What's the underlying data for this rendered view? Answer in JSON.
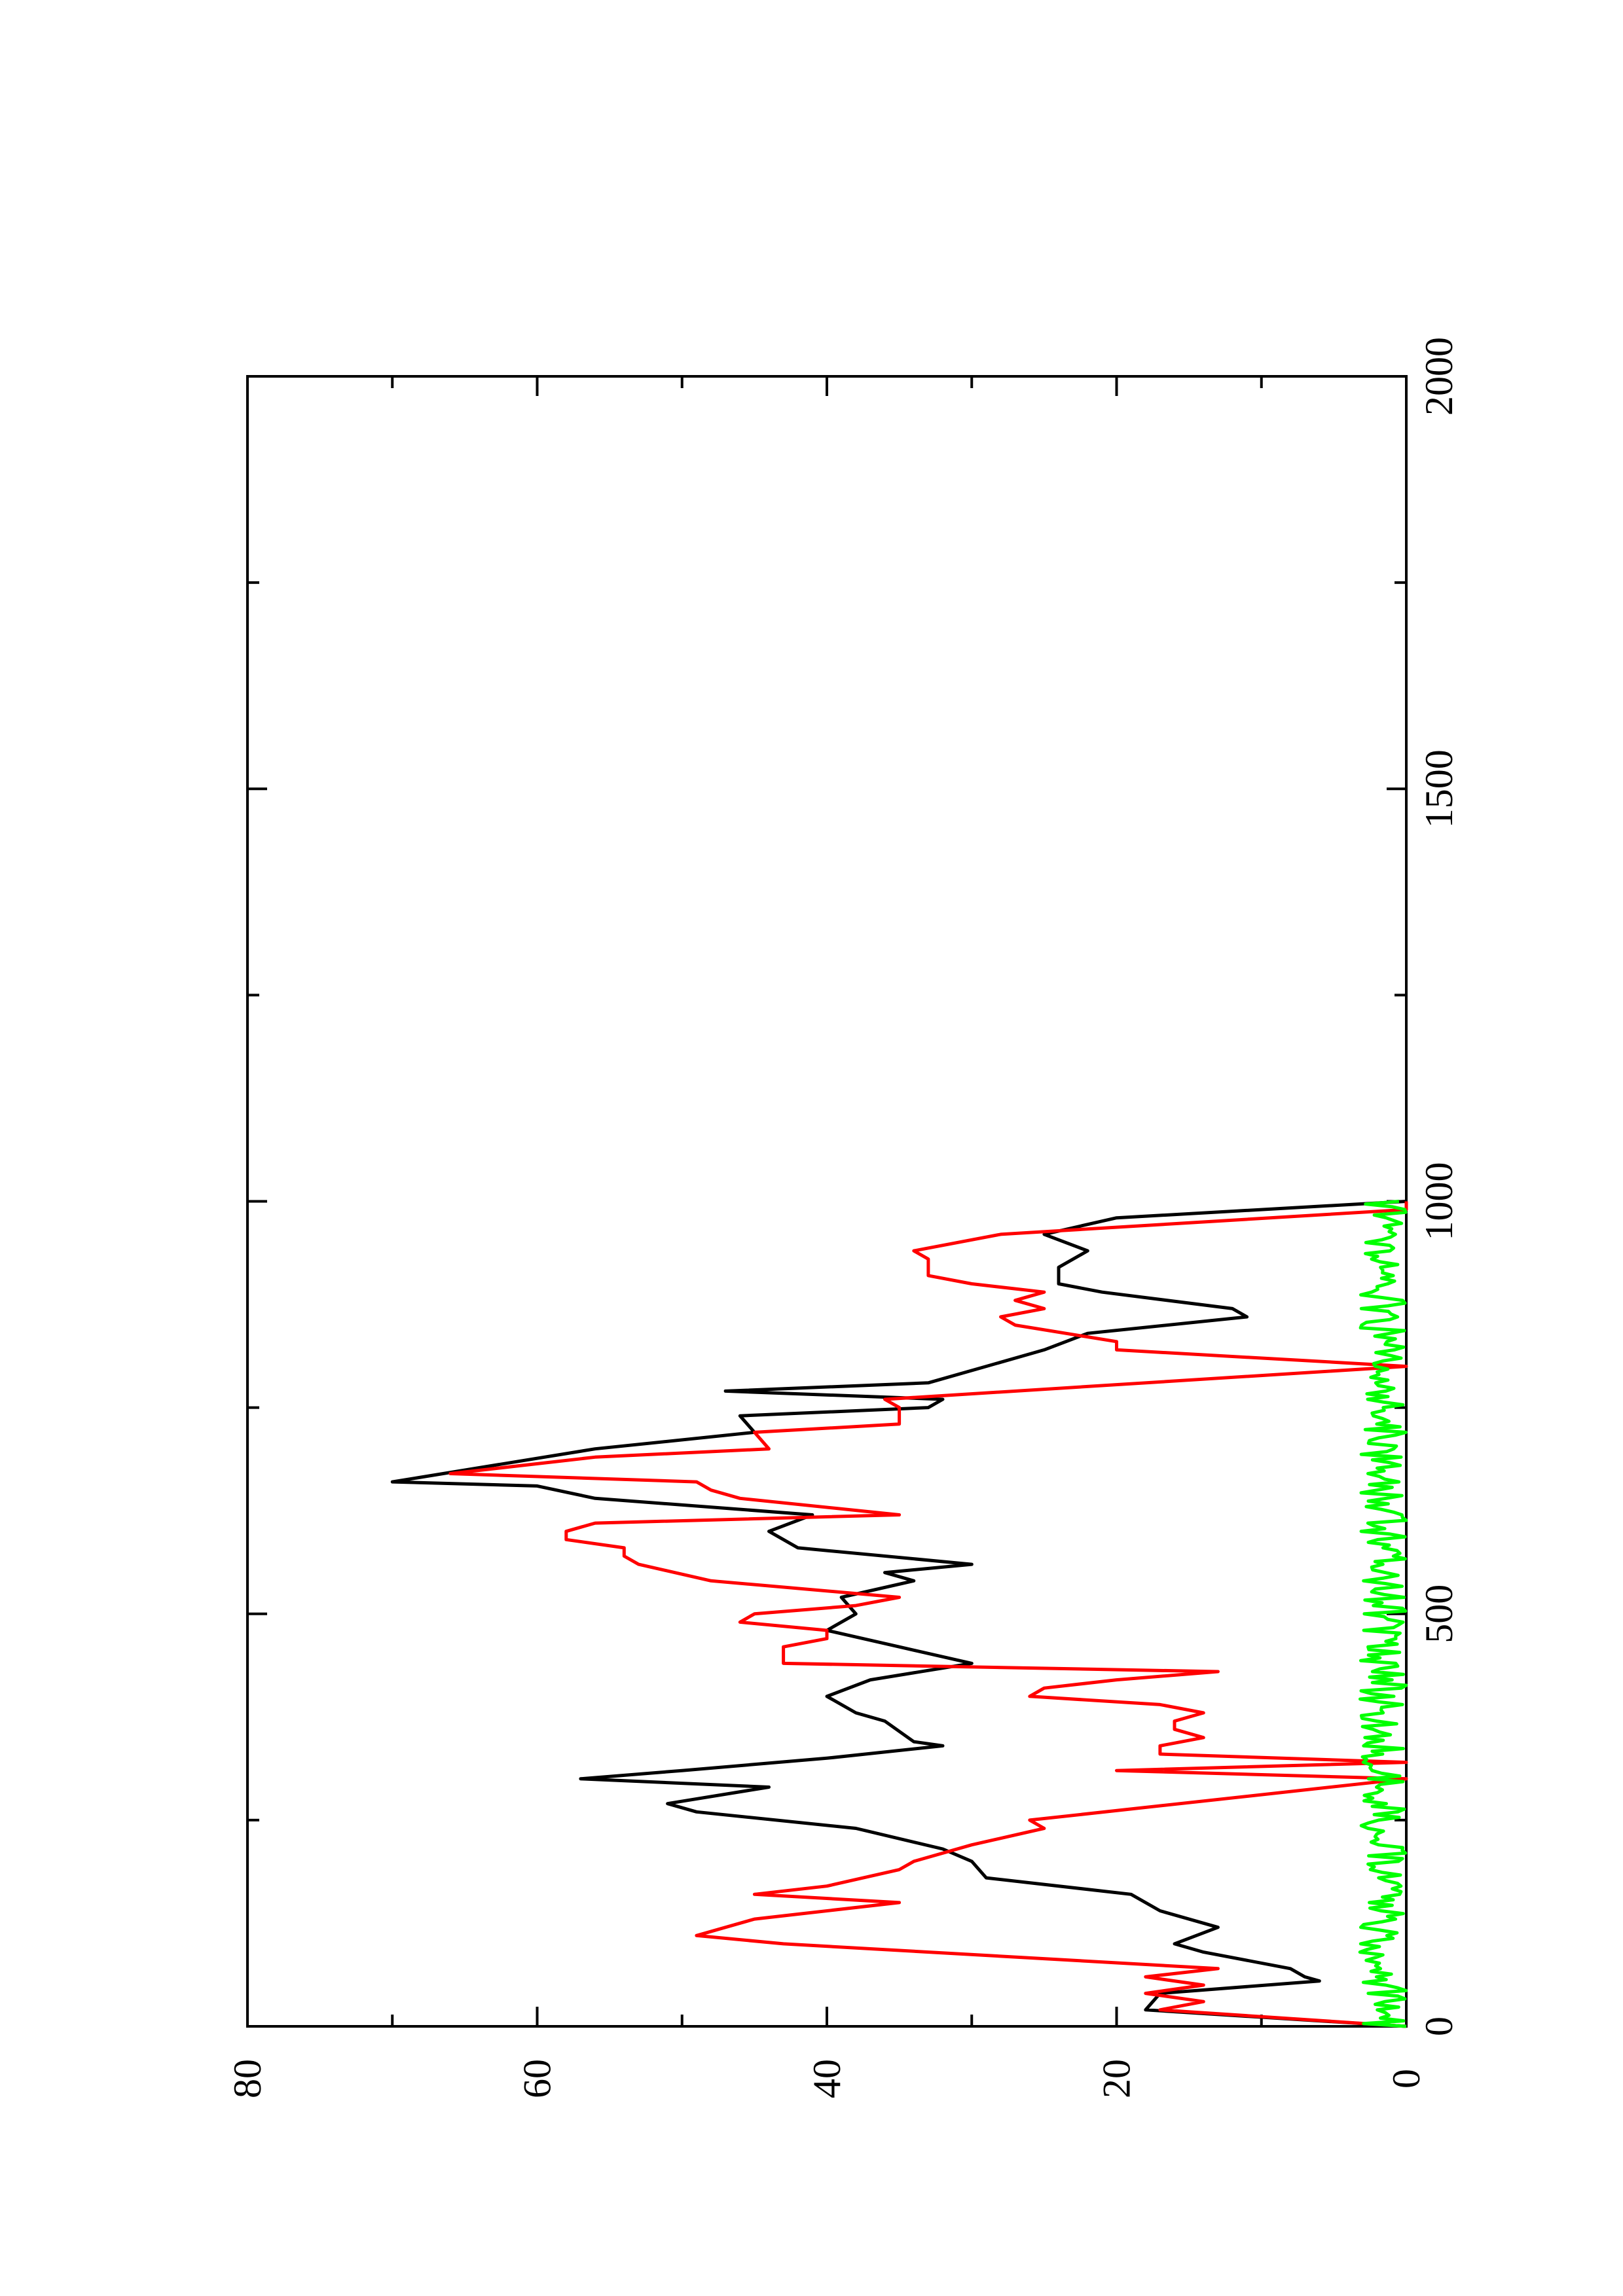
{
  "chart_data": {
    "type": "line",
    "title": "",
    "xlabel": "",
    "ylabel": "",
    "orientation": "rotated-90-clockwise",
    "xlim": [
      0,
      2000
    ],
    "ylim": [
      0,
      80
    ],
    "x_ticks": [
      "0",
      "500",
      "1000",
      "1500",
      "2000"
    ],
    "y_ticks": [
      "0",
      "20",
      "40",
      "60",
      "80"
    ],
    "grid": false,
    "legend": "none",
    "series": [
      {
        "color": "#000000",
        "x": [
          0,
          20,
          40,
          55,
          60,
          70,
          90,
          100,
          120,
          140,
          160,
          180,
          200,
          215,
          240,
          260,
          270,
          290,
          300,
          310,
          325,
          340,
          345,
          370,
          380,
          400,
          420,
          440,
          460,
          480,
          500,
          520,
          540,
          550,
          560,
          580,
          600,
          620,
          640,
          655,
          660,
          700,
          720,
          740,
          750,
          760,
          770,
          780,
          800,
          820,
          840,
          860,
          870,
          890,
          900,
          920,
          940,
          960,
          980,
          1000
        ],
        "values": [
          0,
          18,
          17,
          6,
          7,
          8,
          14,
          16,
          13,
          17,
          19,
          29,
          30,
          32,
          38,
          49,
          51,
          44,
          57,
          50,
          40,
          32,
          34,
          36,
          38,
          40,
          37,
          30,
          35,
          40,
          38,
          39,
          34,
          36,
          30,
          42,
          44,
          41,
          56,
          60,
          70,
          56,
          45,
          46,
          33,
          32,
          47,
          33,
          29,
          25,
          22,
          11,
          12,
          21,
          24,
          24,
          22,
          25,
          20,
          0
        ]
      },
      {
        "color": "#ff0000",
        "x": [
          0,
          20,
          30,
          40,
          50,
          60,
          70,
          100,
          110,
          130,
          150,
          160,
          170,
          190,
          200,
          220,
          240,
          250,
          300,
          310,
          320,
          330,
          340,
          350,
          360,
          370,
          380,
          390,
          400,
          410,
          420,
          430,
          440,
          460,
          470,
          480,
          490,
          500,
          510,
          520,
          540,
          560,
          570,
          580,
          590,
          600,
          610,
          620,
          640,
          650,
          660,
          670,
          690,
          700,
          720,
          730,
          750,
          760,
          800,
          820,
          830,
          850,
          860,
          870,
          880,
          890,
          900,
          910,
          930,
          940,
          960,
          990,
          1000
        ],
        "values": [
          0,
          17,
          14,
          18,
          14,
          18,
          13,
          43,
          49,
          45,
          35,
          45,
          40,
          35,
          34,
          30,
          25,
          26,
          0,
          20,
          0,
          17,
          17,
          14,
          16,
          16,
          14,
          17,
          26,
          25,
          20,
          13,
          43,
          43,
          40,
          40,
          46,
          45,
          38,
          35,
          48,
          53,
          54,
          54,
          58,
          58,
          56,
          35,
          46,
          48,
          49,
          66,
          56,
          44,
          45,
          35,
          35,
          36,
          0,
          20,
          20,
          27,
          28,
          25,
          27,
          25,
          30,
          33,
          33,
          34,
          28,
          0,
          0
        ]
      },
      {
        "color": "#00ff00",
        "x": [
          0,
          1000
        ],
        "values": [
          0,
          0
        ],
        "noise_amplitude": 2
      }
    ]
  }
}
